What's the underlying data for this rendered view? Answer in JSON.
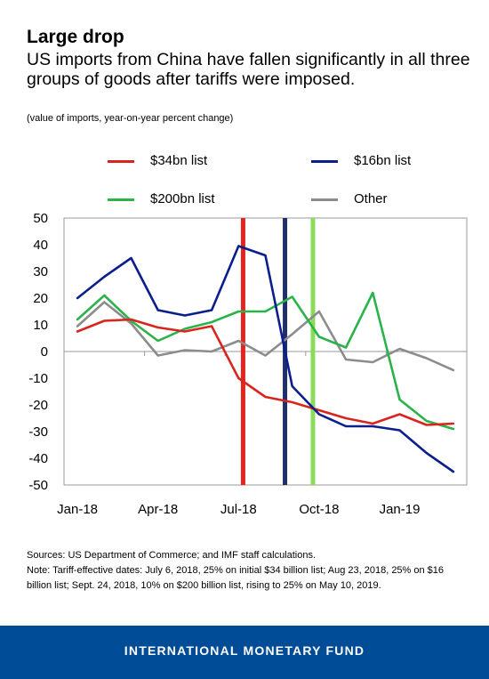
{
  "title": "Large drop",
  "subtitle": "US imports from China have fallen significantly in all three groups of goods after tariffs were imposed.",
  "unit_note": "(value of imports, year-on-year percent change)",
  "legend": [
    {
      "label": "$34bn list",
      "color": "#D7261E"
    },
    {
      "label": "$16bn list",
      "color": "#0A1E8C"
    },
    {
      "label": "$200bn list",
      "color": "#2BB34A"
    },
    {
      "label": "Other",
      "color": "#8C8C8C"
    }
  ],
  "sources": "Sources: US Department of Commerce; and IMF staff calculations.",
  "note": "Note: Tariff-effective dates: July 6, 2018, 25% on initial $34 billion list; Aug 23, 2018, 25% on $16 billion list; Sept. 24, 2018, 10% on $200 billion list, rising to 25% on May 10, 2019.",
  "footer": "INTERNATIONAL MONETARY FUND",
  "chart_data": {
    "type": "line",
    "x": [
      "Jan-18",
      "Feb-18",
      "Mar-18",
      "Apr-18",
      "May-18",
      "Jun-18",
      "Jul-18",
      "Aug-18",
      "Sep-18",
      "Oct-18",
      "Nov-18",
      "Dec-18",
      "Jan-19",
      "Feb-19",
      "Mar-19"
    ],
    "tick_labels": [
      "Jan-18",
      "Apr-18",
      "Jul-18",
      "Oct-18",
      "Jan-19"
    ],
    "ylim": [
      -50,
      50
    ],
    "yticks": [
      50,
      40,
      30,
      20,
      10,
      0,
      -10,
      -20,
      -30,
      -40,
      -50
    ],
    "series": [
      {
        "name": "$34bn list",
        "color": "#D7261E",
        "values": [
          7.5,
          11.5,
          12,
          9,
          7.5,
          9.5,
          -10,
          -17,
          -19,
          -22,
          -25,
          -27,
          -23.5,
          -27.5,
          -27
        ]
      },
      {
        "name": "$16bn list",
        "color": "#0A1E8C",
        "values": [
          20,
          28,
          35,
          15.5,
          13.5,
          15.5,
          39.5,
          36,
          -13,
          -23.5,
          -28,
          -28,
          -29.5,
          -38,
          -45
        ]
      },
      {
        "name": "$200bn list",
        "color": "#2BB34A",
        "values": [
          12,
          21,
          11.5,
          4,
          8.5,
          11,
          15,
          15,
          20.5,
          5.5,
          1.5,
          22,
          -18,
          -26,
          -29
        ]
      },
      {
        "name": "Other",
        "color": "#8C8C8C",
        "values": [
          9.5,
          18.5,
          10.5,
          -1.5,
          0.5,
          0,
          4,
          -1.5,
          6.5,
          15,
          -3,
          -4,
          1,
          -2.5,
          -7
        ]
      }
    ],
    "tariff_markers": [
      {
        "date": "July 6, 2018",
        "x_month": 6.17,
        "color": "#E0261E"
      },
      {
        "date": "Aug 23, 2018",
        "x_month": 7.73,
        "color": "#1F2F6B"
      },
      {
        "date": "Sept. 24, 2018",
        "x_month": 8.77,
        "color": "#8BDB5A"
      }
    ]
  }
}
